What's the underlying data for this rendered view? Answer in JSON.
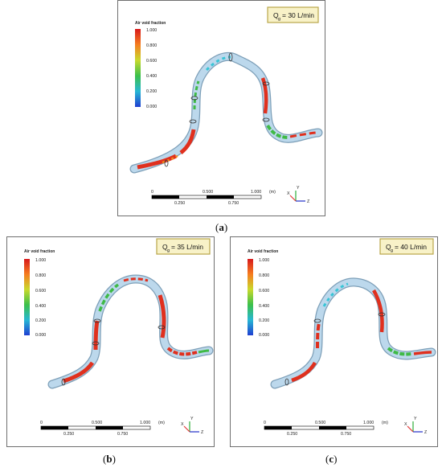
{
  "panels": [
    {
      "id": "a",
      "flow_label": "Q",
      "flow_sub": "g",
      "flow_value": "= 30 L/min",
      "caption_letter": "a"
    },
    {
      "id": "b",
      "flow_label": "Q",
      "flow_sub": "g",
      "flow_value": "= 35 L/min",
      "caption_letter": "b"
    },
    {
      "id": "c",
      "flow_label": "Q",
      "flow_sub": "g",
      "flow_value": "= 40 L/min",
      "caption_letter": "c"
    }
  ],
  "legend": {
    "title": "Air void fraction",
    "ticks": [
      "1.000",
      "0.800",
      "0.600",
      "0.400",
      "0.200",
      "0.000"
    ]
  },
  "scale_bar": {
    "top_labels": [
      "0",
      "0.500",
      "1.000"
    ],
    "bottom_labels": [
      "0.250",
      "0.750"
    ],
    "unit": "(m)"
  },
  "axes": {
    "x": "X",
    "y": "Y",
    "z": "Z"
  },
  "colors": {
    "pipe": "#bcd8ec",
    "pipe_edge": "#7d9fb8",
    "red": "#e0301e",
    "orange": "#f2891d",
    "green": "#3fba46",
    "cyan": "#38c5d6",
    "flow_box": "#f8f2c8",
    "flow_box_border": "#b9a64a"
  }
}
